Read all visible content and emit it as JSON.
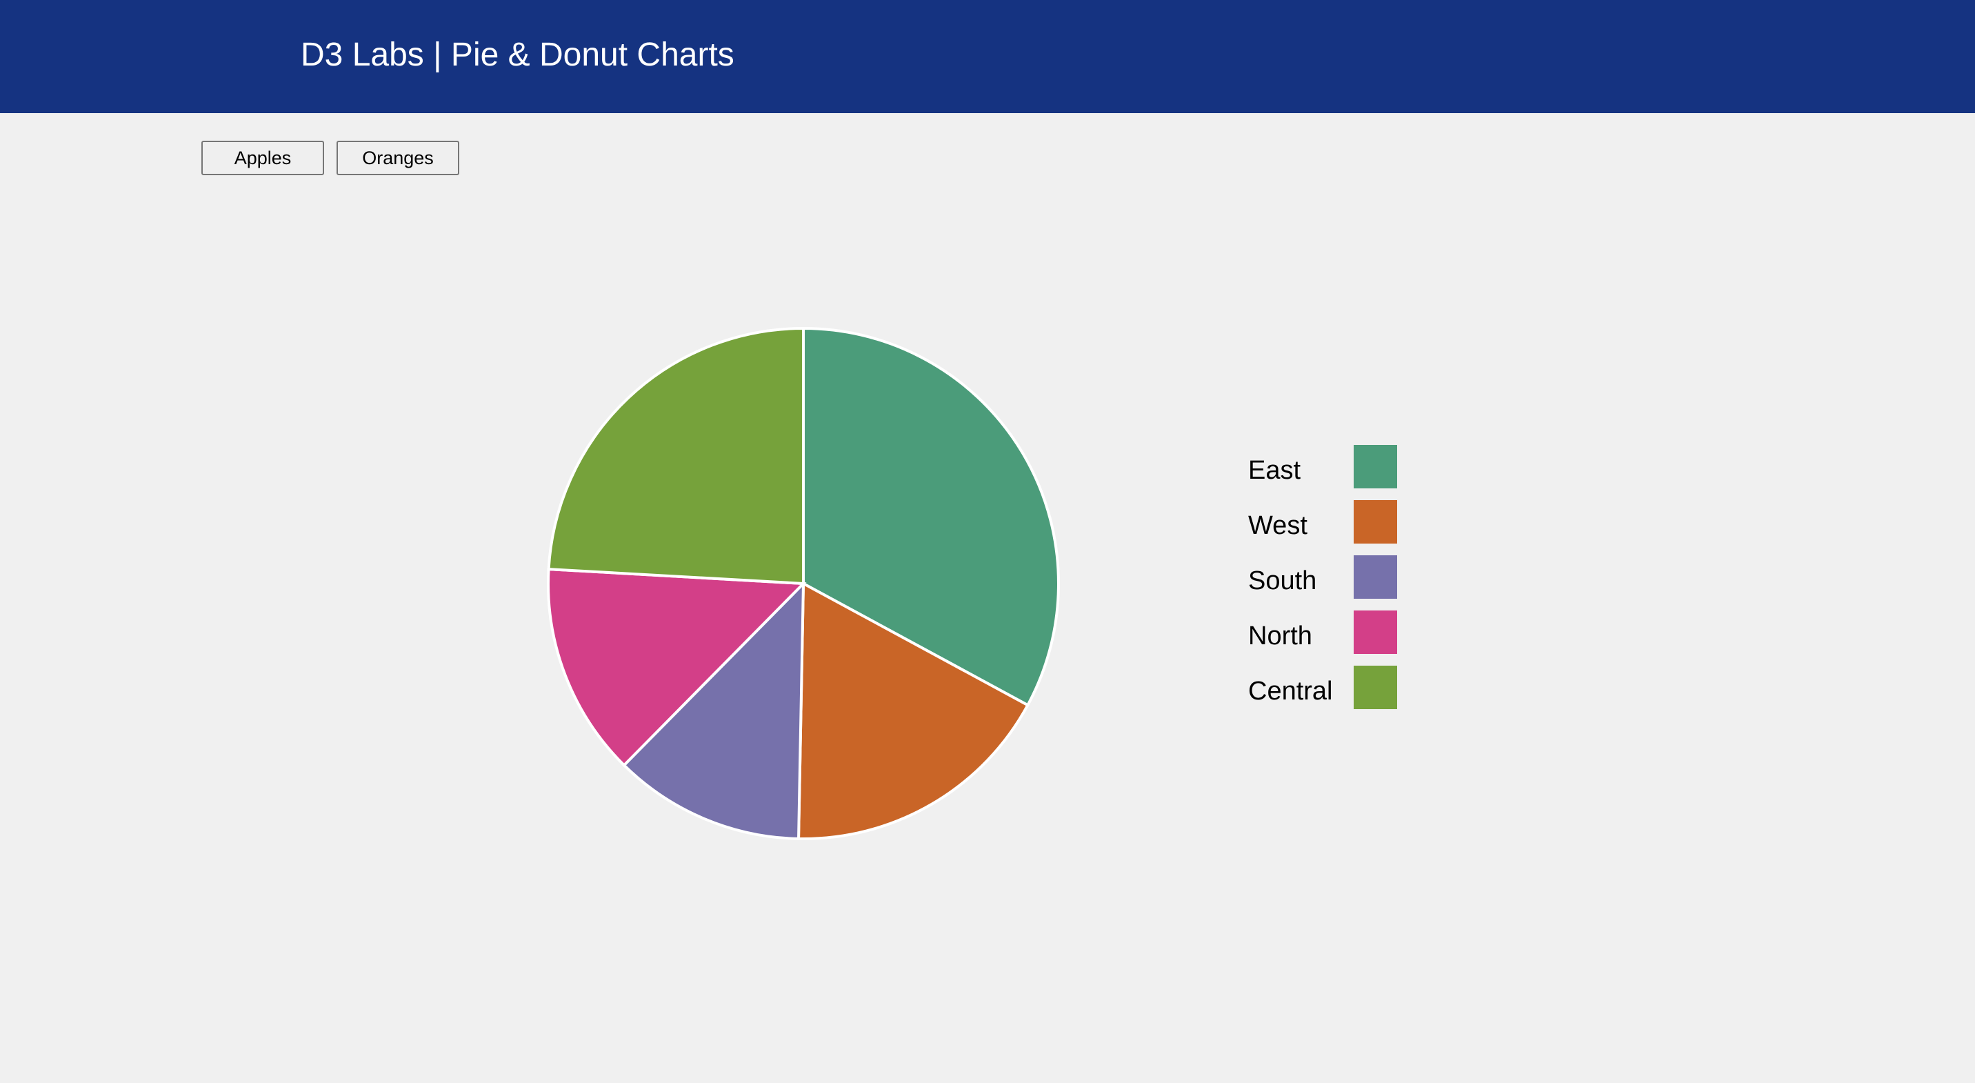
{
  "header": {
    "title": "D3 Labs | Pie & Donut Charts"
  },
  "buttons": {
    "apples_label": "Apples",
    "oranges_label": "Oranges"
  },
  "colors": {
    "header_bg": "#153381",
    "page_bg": "#f0f0f0"
  },
  "chart_data": {
    "type": "pie",
    "legend_position": "right",
    "slices": [
      {
        "label": "East",
        "value": 32.9,
        "color": "#4b9c7a"
      },
      {
        "label": "West",
        "value": 17.4,
        "color": "#c96527"
      },
      {
        "label": "South",
        "value": 12.1,
        "color": "#7671ab"
      },
      {
        "label": "North",
        "value": 13.5,
        "color": "#d33f88"
      },
      {
        "label": "Central",
        "value": 24.1,
        "color": "#76a23b"
      }
    ]
  }
}
